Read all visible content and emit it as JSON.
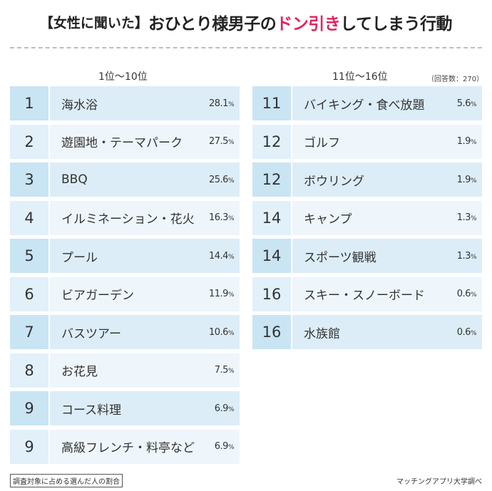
{
  "title": {
    "tag": "【女性に聞いた】",
    "before": "おひとり様男子の",
    "accent": "ドン引き",
    "after": "してしまう行動"
  },
  "headers": {
    "left": "1位〜10位",
    "right": "11位〜16位",
    "respondents": "（回答数：270）"
  },
  "left_rows": [
    {
      "rank": "1",
      "label": "海水浴",
      "pct": "28.1",
      "shade": "dark"
    },
    {
      "rank": "2",
      "label": "遊園地・テーマパーク",
      "pct": "27.5",
      "shade": "light"
    },
    {
      "rank": "3",
      "label": "BBQ",
      "pct": "25.6",
      "shade": "dark"
    },
    {
      "rank": "4",
      "label": "イルミネーション・花火",
      "pct": "16.3",
      "shade": "light"
    },
    {
      "rank": "5",
      "label": "プール",
      "pct": "14.4",
      "shade": "dark"
    },
    {
      "rank": "6",
      "label": "ビアガーデン",
      "pct": "11.9",
      "shade": "light"
    },
    {
      "rank": "7",
      "label": "バスツアー",
      "pct": "10.6",
      "shade": "dark"
    },
    {
      "rank": "8",
      "label": "お花見",
      "pct": "7.5",
      "shade": "light"
    },
    {
      "rank": "9",
      "label": "コース料理",
      "pct": "6.9",
      "shade": "dark"
    },
    {
      "rank": "9",
      "label": "高級フレンチ・料亭など",
      "pct": "6.9",
      "shade": "light"
    }
  ],
  "right_rows": [
    {
      "rank": "11",
      "label": "バイキング・食べ放題",
      "pct": "5.6",
      "shade": "dark"
    },
    {
      "rank": "12",
      "label": "ゴルフ",
      "pct": "1.9",
      "shade": "light"
    },
    {
      "rank": "12",
      "label": "ボウリング",
      "pct": "1.9",
      "shade": "dark"
    },
    {
      "rank": "14",
      "label": "キャンプ",
      "pct": "1.3",
      "shade": "light"
    },
    {
      "rank": "14",
      "label": "スポーツ観戦",
      "pct": "1.3",
      "shade": "dark"
    },
    {
      "rank": "16",
      "label": "スキー・スノーボード",
      "pct": "0.6",
      "shade": "light"
    },
    {
      "rank": "16",
      "label": "水族館",
      "pct": "0.6",
      "shade": "dark"
    }
  ],
  "pct_unit": "%",
  "footer": {
    "note": "調査対象に占める選んだ人の割合",
    "credit": "マッチングアプリ大学調べ"
  }
}
